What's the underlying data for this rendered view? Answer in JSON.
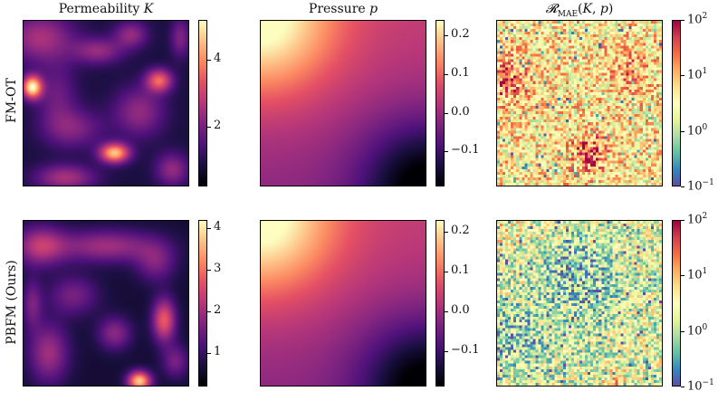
{
  "columns": [
    {
      "title": "Permeability K"
    },
    {
      "title": "Pressure p"
    },
    {
      "title": "R_MAE(K, p)"
    }
  ],
  "rows": [
    {
      "label": "FM-OT"
    },
    {
      "label": "PBFM (Ours)"
    }
  ],
  "chart_data": [
    {
      "type": "heatmap",
      "row": "FM-OT",
      "column": "Permeability K",
      "colormap": "magma",
      "colorbar_ticks": [
        "2",
        "4"
      ],
      "clim": [
        0.2,
        5.2
      ],
      "shows_axes_ticks": false
    },
    {
      "type": "heatmap",
      "row": "FM-OT",
      "column": "Pressure p",
      "colormap": "magma",
      "colorbar_ticks": [
        "-0.1",
        "0.0",
        "0.1",
        "0.2"
      ],
      "clim": [
        -0.19,
        0.24
      ]
    },
    {
      "type": "heatmap",
      "row": "FM-OT",
      "column": "R_MAE(K, p)",
      "colormap": "Spectral_r",
      "scale": "log",
      "colorbar_ticks": [
        "10^-1",
        "10^0",
        "10^1",
        "10^2"
      ],
      "clim": [
        0.1,
        100
      ]
    },
    {
      "type": "heatmap",
      "row": "PBFM (Ours)",
      "column": "Permeability K",
      "colormap": "magma",
      "colorbar_ticks": [
        "1",
        "2",
        "3",
        "4"
      ],
      "clim": [
        0.2,
        4.2
      ]
    },
    {
      "type": "heatmap",
      "row": "PBFM (Ours)",
      "column": "Pressure p",
      "colormap": "magma",
      "colorbar_ticks": [
        "-0.1",
        "0.0",
        "0.1",
        "0.2"
      ],
      "clim": [
        -0.19,
        0.23
      ]
    },
    {
      "type": "heatmap",
      "row": "PBFM (Ours)",
      "column": "R_MAE(K, p)",
      "colormap": "Spectral_r",
      "scale": "log",
      "colorbar_ticks": [
        "10^-1",
        "10^0",
        "10^1",
        "10^2"
      ],
      "clim": [
        0.1,
        100
      ]
    }
  ],
  "colorbars": {
    "r0_k": [
      {
        "text": "4",
        "v": 4
      },
      {
        "text": "2",
        "v": 2
      }
    ],
    "r0_p": [
      {
        "text": "0.2",
        "v": 0.2
      },
      {
        "text": "0.1",
        "v": 0.1
      },
      {
        "text": "0.0",
        "v": 0.0
      },
      {
        "text": "−0.1",
        "v": -0.1
      }
    ],
    "r0_e": [
      {
        "exp": "2",
        "v": 2
      },
      {
        "exp": "1",
        "v": 1
      },
      {
        "exp": "0",
        "v": 0
      },
      {
        "exp": "−1",
        "v": -1
      }
    ],
    "r1_k": [
      {
        "text": "4",
        "v": 4
      },
      {
        "text": "3",
        "v": 3
      },
      {
        "text": "2",
        "v": 2
      },
      {
        "text": "1",
        "v": 1
      }
    ],
    "r1_p": [
      {
        "text": "0.2",
        "v": 0.2
      },
      {
        "text": "0.1",
        "v": 0.1
      },
      {
        "text": "0.0",
        "v": 0.0
      },
      {
        "text": "−0.1",
        "v": -0.1
      }
    ],
    "r1_e": [
      {
        "exp": "2",
        "v": 2
      },
      {
        "exp": "1",
        "v": 1
      },
      {
        "exp": "0",
        "v": 0
      },
      {
        "exp": "−1",
        "v": -1
      }
    ]
  }
}
